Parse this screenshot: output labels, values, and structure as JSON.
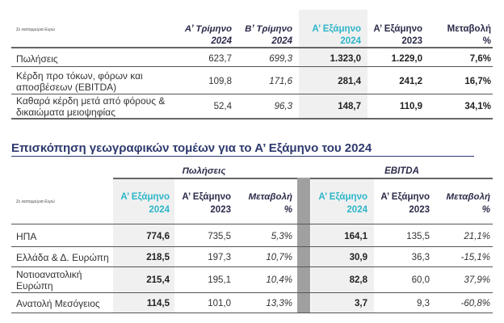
{
  "table1": {
    "note": "Σε εκατομμύρια Ευρώ",
    "headers": [
      [
        "Α’ Τρίμηνο",
        "2024"
      ],
      [
        "Β’ Τρίμηνο",
        "2024"
      ],
      [
        "Α’ Εξάμηνο",
        "2024"
      ],
      [
        "Α’ Εξάμηνο",
        "2023"
      ],
      [
        "Μεταβολή",
        "%"
      ]
    ],
    "rows": [
      {
        "label": [
          "Πωλήσεις"
        ],
        "values": [
          "623,7",
          "699,3",
          "1.323,0",
          "1.229,0",
          "7,6%"
        ]
      },
      {
        "label": [
          "Κέρδη προ τόκων, φόρων και",
          "αποσβέσεων (EBITDA)"
        ],
        "values": [
          "109,8",
          "171,6",
          "281,4",
          "241,2",
          "16,7%"
        ]
      },
      {
        "label": [
          "Καθαρά κέρδη μετά από φόρους &",
          "δικαιώματα μειοψηφίας"
        ],
        "values": [
          "52,4",
          "96,3",
          "148,7",
          "110,9",
          "34,1%"
        ]
      }
    ]
  },
  "section_title": "Επισκόπηση γεωγραφικών τομέων για το Α’ Εξάμηνο του 2024",
  "table2": {
    "note": "Σε εκατομμύρια Ευρώ",
    "groups": [
      "Πωλήσεις",
      "EBITDA"
    ],
    "headers": [
      [
        "Α’ Εξάμηνο",
        "2024"
      ],
      [
        "Α’ Εξάμηνο",
        "2023"
      ],
      [
        "Μεταβολή",
        "%"
      ],
      [
        "Α’ Εξάμηνο",
        "2024"
      ],
      [
        "Α’ Εξάμηνο",
        "2023"
      ],
      [
        "Μεταβολή",
        "%"
      ]
    ],
    "rows": [
      {
        "label": [
          "ΗΠΑ"
        ],
        "values": [
          "774,6",
          "735,5",
          "5,3%",
          "164,1",
          "135,5",
          "21,1%"
        ]
      },
      {
        "label": [
          "Ελλάδα & Δ. Ευρώπη"
        ],
        "values": [
          "218,5",
          "197,3",
          "10,7%",
          "30,9",
          "36,3",
          "-15,1%"
        ]
      },
      {
        "label": [
          "Νοτιοανατολική",
          "Ευρώπη"
        ],
        "values": [
          "215,4",
          "195,1",
          "10,4%",
          "82,8",
          "60,0",
          "37,9%"
        ]
      },
      {
        "label": [
          "Ανατολή Μεσόγειος"
        ],
        "values": [
          "114,5",
          "101,0",
          "13,3%",
          "3,7",
          "9,3",
          "-60,8%"
        ]
      }
    ]
  },
  "colors": {
    "accent": "#2bb5c8",
    "title": "#2e3a6e",
    "shade": "#f0f0f0",
    "divider": "#a0a0a0"
  }
}
